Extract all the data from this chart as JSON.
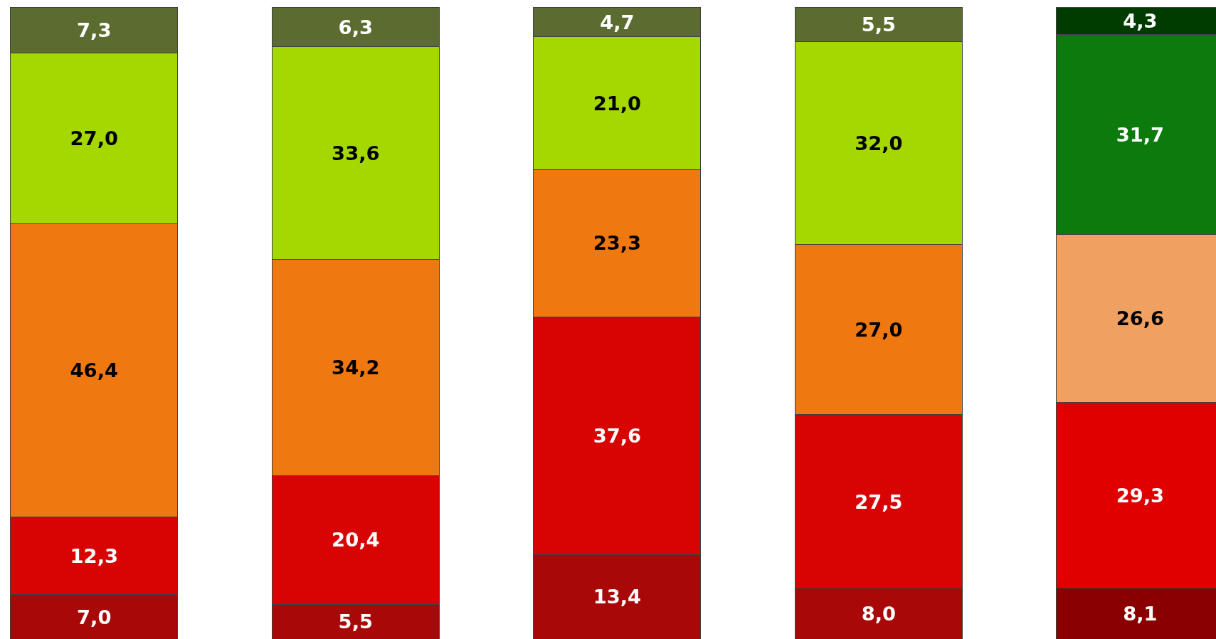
{
  "chart_data": {
    "type": "bar",
    "stacked": true,
    "categories": [
      null,
      null,
      null,
      null,
      null
    ],
    "tick_labels": false,
    "series": [
      {
        "colors": [
          "#a80808",
          "#a80808",
          "#a80808",
          "#a80808",
          "#8a0000"
        ],
        "values": [
          7.0,
          5.5,
          13.4,
          8.0,
          8.1
        ],
        "value_labels": [
          "7,0",
          "5,5",
          "13,4",
          "8,0",
          "8,1"
        ]
      },
      {
        "colors": [
          "#d80404",
          "#d80404",
          "#d80404",
          "#d80404",
          "#e00000"
        ],
        "values": [
          12.3,
          20.4,
          37.6,
          27.5,
          29.3
        ],
        "value_labels": [
          "12,3",
          "20,4",
          "37,6",
          "27,5",
          "29,3"
        ]
      },
      {
        "colors": [
          "#f07810",
          "#f07810",
          "#f07810",
          "#f07810",
          "#f0a060"
        ],
        "values": [
          46.4,
          34.2,
          23.3,
          27.0,
          26.6
        ],
        "value_labels": [
          "46,4",
          "34,2",
          "23,3",
          "27,0",
          "26,6"
        ]
      },
      {
        "colors": [
          "#a4d800",
          "#a4d800",
          "#a4d800",
          "#a4d800",
          "#0c7a0c"
        ],
        "values": [
          27.0,
          33.6,
          21.0,
          32.0,
          31.7
        ],
        "value_labels": [
          "27,0",
          "33,6",
          "21,0",
          "32,0",
          "31,7"
        ]
      },
      {
        "colors": [
          "#5c6c30",
          "#5c6c30",
          "#5c6c30",
          "#5c6c30",
          "#003c00"
        ],
        "values": [
          7.3,
          6.3,
          4.7,
          5.5,
          4.3
        ],
        "value_labels": [
          "7,3",
          "6,3",
          "4,7",
          "5,5",
          "4,3"
        ]
      }
    ]
  }
}
